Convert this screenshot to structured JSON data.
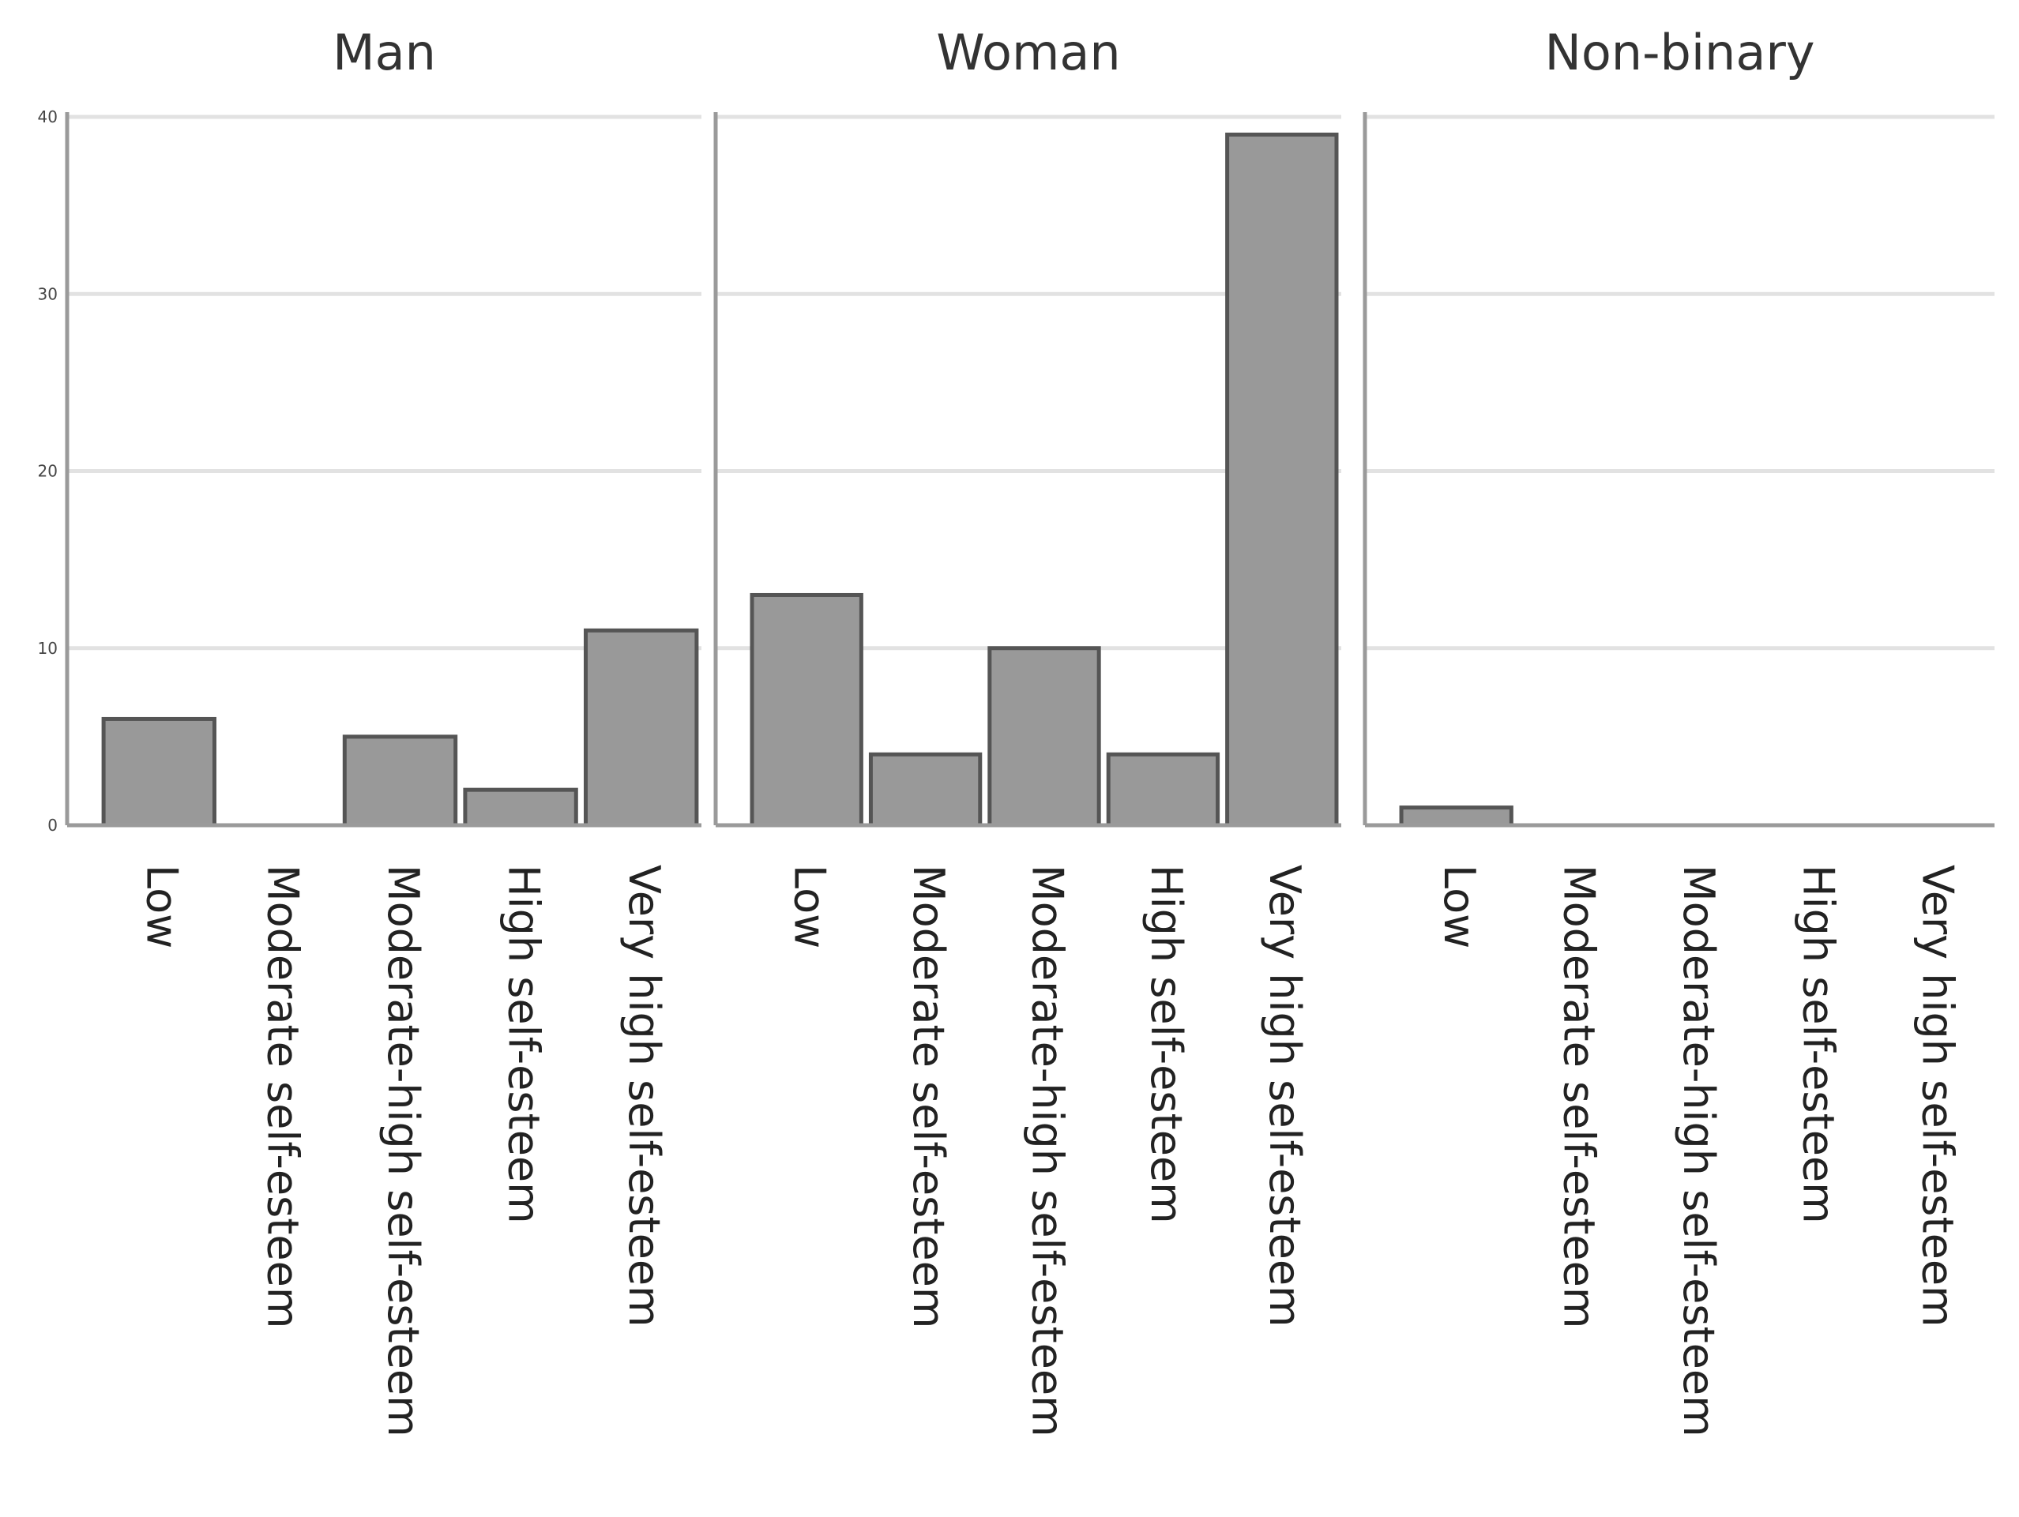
{
  "chart_data": [
    {
      "type": "bar",
      "title": "Man",
      "categories": [
        "Low",
        "Moderate self-esteem",
        "Moderate-high self-esteem",
        "High self-esteem",
        "Very high self-esteem"
      ],
      "values": [
        6,
        0,
        5,
        2,
        11
      ],
      "ylim": [
        0,
        40
      ],
      "yticks": [
        "0",
        "10",
        "20",
        "30",
        "40"
      ],
      "grid": true
    },
    {
      "type": "bar",
      "title": "Woman",
      "categories": [
        "Low",
        "Moderate self-esteem",
        "Moderate-high self-esteem",
        "High self-esteem",
        "Very high self-esteem"
      ],
      "values": [
        13,
        4,
        10,
        4,
        39
      ],
      "ylim": [
        0,
        40
      ],
      "grid": true
    },
    {
      "type": "bar",
      "title": "Non-binary",
      "categories": [
        "Low",
        "Moderate self-esteem",
        "Moderate-high self-esteem",
        "High self-esteem",
        "Very high self-esteem"
      ],
      "values": [
        1,
        0,
        0,
        0,
        0
      ],
      "ylim": [
        0,
        40
      ],
      "grid": true
    }
  ],
  "colors": {
    "bar_fill": "#999999",
    "bar_stroke": "#555555",
    "grid": "#e2e2e2",
    "axis": "#9a9a9a"
  }
}
